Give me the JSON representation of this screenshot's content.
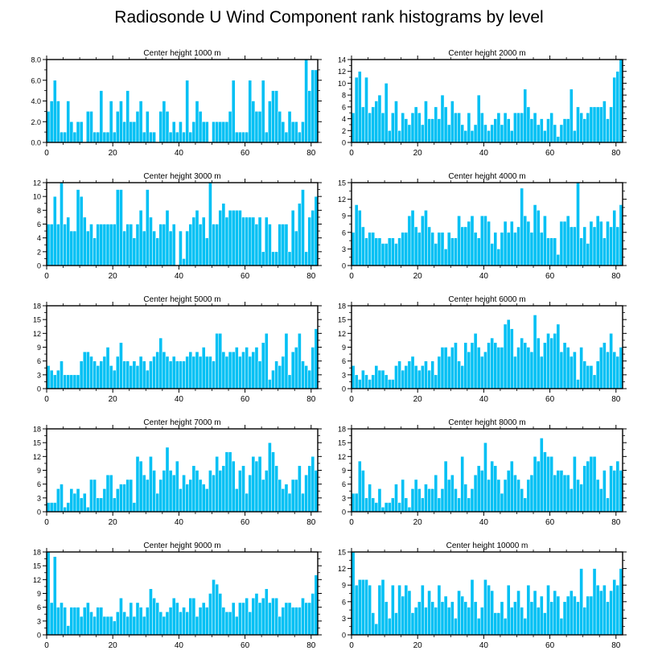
{
  "title": "Radiosonde U Wind Component rank histograms by level",
  "colors": {
    "bar": "#00c0f4",
    "bar_stroke": "#ffffff",
    "axis": "#000000"
  },
  "chart_data": [
    {
      "type": "bar",
      "title": "Center height 1000 m",
      "xlim": [
        0,
        82
      ],
      "ylim": [
        0,
        8
      ],
      "xticks": [
        0,
        20,
        40,
        60,
        80
      ],
      "xticklabels": [
        "0",
        "20",
        "40",
        "60",
        "80"
      ],
      "yticks": [
        0,
        2,
        4,
        6,
        8
      ],
      "yticklabels": [
        "0.0",
        "2.0",
        "4.0",
        "6.0",
        "8.0"
      ],
      "values": [
        3,
        4,
        6,
        4,
        1,
        1,
        4,
        2,
        1,
        2,
        2,
        0,
        3,
        3,
        1,
        1,
        5,
        1,
        1,
        4,
        1,
        3,
        4,
        2,
        5,
        2,
        2,
        3,
        4,
        1,
        3,
        1,
        1,
        0,
        3,
        4,
        3,
        1,
        2,
        1,
        2,
        1,
        6,
        1,
        2,
        4,
        3,
        2,
        2,
        0,
        2,
        2,
        2,
        2,
        2,
        3,
        6,
        1,
        1,
        1,
        1,
        6,
        4,
        3,
        3,
        6,
        1,
        4,
        5,
        5,
        3,
        2,
        1,
        3,
        2,
        2,
        1,
        2,
        8,
        5,
        7,
        7
      ]
    },
    {
      "type": "bar",
      "title": "Center height 2000 m",
      "xlim": [
        0,
        82
      ],
      "ylim": [
        0,
        14
      ],
      "xticks": [
        0,
        20,
        40,
        60,
        80
      ],
      "xticklabels": [
        "0",
        "20",
        "40",
        "60",
        "80"
      ],
      "yticks": [
        0,
        2,
        4,
        6,
        8,
        10,
        12,
        14
      ],
      "yticklabels": [
        "0",
        "2",
        "4",
        "6",
        "8",
        "10",
        "12",
        "14"
      ],
      "values": [
        5,
        11,
        12,
        6,
        11,
        5,
        6,
        7,
        8,
        5,
        10,
        2,
        5,
        7,
        2,
        5,
        4,
        3,
        5,
        6,
        5,
        3,
        7,
        4,
        4,
        6,
        4,
        8,
        6,
        3,
        7,
        5,
        5,
        3,
        2,
        5,
        2,
        3,
        8,
        5,
        3,
        2,
        3,
        4,
        5,
        3,
        5,
        4,
        2,
        5,
        5,
        5,
        9,
        6,
        4,
        5,
        3,
        4,
        2,
        4,
        5,
        3,
        1,
        3,
        4,
        4,
        9,
        2,
        6,
        5,
        4,
        5,
        6,
        6,
        6,
        6,
        7,
        4,
        6,
        11,
        12,
        14
      ]
    },
    {
      "type": "bar",
      "title": "Center height 3000 m",
      "xlim": [
        0,
        82
      ],
      "ylim": [
        0,
        12
      ],
      "xticks": [
        0,
        20,
        40,
        60,
        80
      ],
      "xticklabels": [
        "0",
        "20",
        "40",
        "60",
        "80"
      ],
      "yticks": [
        0,
        2,
        4,
        6,
        8,
        10,
        12
      ],
      "yticklabels": [
        "0",
        "2",
        "4",
        "6",
        "8",
        "10",
        "12"
      ],
      "values": [
        6,
        6,
        10,
        6,
        12,
        6,
        7,
        5,
        5,
        11,
        10,
        7,
        5,
        6,
        4,
        6,
        6,
        6,
        6,
        6,
        6,
        11,
        11,
        5,
        6,
        6,
        4,
        6,
        8,
        5,
        11,
        7,
        5,
        4,
        6,
        6,
        8,
        5,
        6,
        0,
        5,
        1,
        5,
        6,
        7,
        8,
        6,
        7,
        4,
        12,
        6,
        6,
        8,
        9,
        7,
        8,
        8,
        8,
        8,
        7,
        7,
        7,
        7,
        6,
        7,
        2,
        7,
        6,
        2,
        2,
        6,
        6,
        6,
        2,
        8,
        5,
        9,
        11,
        2,
        7,
        8,
        10
      ]
    },
    {
      "type": "bar",
      "title": "Center height 4000 m",
      "xlim": [
        0,
        82
      ],
      "ylim": [
        0,
        15
      ],
      "xticks": [
        0,
        20,
        40,
        60,
        80
      ],
      "xticklabels": [
        "0",
        "20",
        "40",
        "60",
        "80"
      ],
      "yticks": [
        0,
        3,
        6,
        9,
        12,
        15
      ],
      "yticklabels": [
        "0",
        "3",
        "6",
        "9",
        "12",
        "15"
      ],
      "values": [
        6,
        11,
        10,
        7,
        5,
        6,
        6,
        5,
        5,
        4,
        4,
        5,
        5,
        4,
        5,
        6,
        6,
        9,
        10,
        7,
        6,
        9,
        10,
        7,
        6,
        4,
        6,
        6,
        3,
        6,
        5,
        5,
        9,
        7,
        7,
        8,
        9,
        6,
        5,
        9,
        9,
        8,
        4,
        6,
        3,
        6,
        8,
        6,
        8,
        6,
        7,
        14,
        9,
        8,
        6,
        11,
        10,
        6,
        9,
        5,
        5,
        5,
        2,
        8,
        8,
        9,
        7,
        7,
        15,
        5,
        7,
        4,
        8,
        7,
        9,
        8,
        5,
        8,
        7,
        10,
        7,
        11
      ]
    },
    {
      "type": "bar",
      "title": "Center height 5000 m",
      "xlim": [
        0,
        82
      ],
      "ylim": [
        0,
        18
      ],
      "xticks": [
        0,
        20,
        40,
        60,
        80
      ],
      "xticklabels": [
        "0",
        "20",
        "40",
        "60",
        "80"
      ],
      "yticks": [
        0,
        3,
        6,
        9,
        12,
        15,
        18
      ],
      "yticklabels": [
        "0",
        "3",
        "6",
        "9",
        "12",
        "15",
        "18"
      ],
      "values": [
        5,
        4,
        3,
        4,
        6,
        3,
        3,
        3,
        3,
        3,
        6,
        8,
        8,
        7,
        6,
        5,
        6,
        7,
        9,
        5,
        4,
        7,
        10,
        6,
        6,
        5,
        6,
        5,
        7,
        6,
        4,
        6,
        7,
        8,
        11,
        8,
        7,
        6,
        7,
        6,
        6,
        6,
        7,
        8,
        7,
        8,
        7,
        9,
        7,
        7,
        6,
        12,
        12,
        8,
        7,
        8,
        8,
        9,
        7,
        8,
        9,
        7,
        8,
        9,
        6,
        10,
        12,
        2,
        4,
        6,
        5,
        7,
        12,
        3,
        8,
        9,
        12,
        6,
        5,
        4,
        9,
        13
      ]
    },
    {
      "type": "bar",
      "title": "Center height 6000 m",
      "xlim": [
        0,
        82
      ],
      "ylim": [
        0,
        18
      ],
      "xticks": [
        0,
        20,
        40,
        60,
        80
      ],
      "xticklabels": [
        "0",
        "20",
        "40",
        "60",
        "80"
      ],
      "yticks": [
        0,
        3,
        6,
        9,
        12,
        15,
        18
      ],
      "yticklabels": [
        "0",
        "3",
        "6",
        "9",
        "12",
        "15",
        "18"
      ],
      "values": [
        5,
        3,
        2,
        4,
        3,
        2,
        3,
        5,
        4,
        4,
        3,
        2,
        2,
        5,
        6,
        4,
        5,
        6,
        7,
        5,
        4,
        5,
        6,
        4,
        6,
        3,
        7,
        9,
        9,
        7,
        9,
        10,
        6,
        5,
        10,
        8,
        10,
        12,
        9,
        7,
        8,
        10,
        11,
        10,
        9,
        9,
        14,
        15,
        13,
        7,
        9,
        11,
        10,
        9,
        8,
        16,
        11,
        7,
        10,
        12,
        11,
        12,
        14,
        8,
        10,
        9,
        7,
        8,
        2,
        9,
        6,
        5,
        5,
        3,
        6,
        9,
        10,
        8,
        12,
        8,
        7,
        9
      ]
    },
    {
      "type": "bar",
      "title": "Center height 7000 m",
      "xlim": [
        0,
        82
      ],
      "ylim": [
        0,
        18
      ],
      "xticks": [
        0,
        20,
        40,
        60,
        80
      ],
      "xticklabels": [
        "0",
        "20",
        "40",
        "60",
        "80"
      ],
      "yticks": [
        0,
        3,
        6,
        9,
        12,
        15,
        18
      ],
      "yticklabels": [
        "0",
        "3",
        "6",
        "9",
        "12",
        "15",
        "18"
      ],
      "values": [
        2,
        2,
        2,
        5,
        6,
        1,
        2,
        5,
        4,
        5,
        3,
        4,
        1,
        7,
        7,
        3,
        3,
        5,
        8,
        8,
        3,
        5,
        6,
        6,
        7,
        7,
        2,
        12,
        11,
        8,
        7,
        12,
        9,
        4,
        7,
        9,
        14,
        9,
        8,
        11,
        5,
        8,
        6,
        7,
        10,
        9,
        7,
        6,
        5,
        9,
        8,
        12,
        9,
        10,
        13,
        13,
        11,
        5,
        9,
        10,
        4,
        8,
        12,
        11,
        12,
        7,
        9,
        15,
        13,
        10,
        7,
        5,
        6,
        4,
        7,
        7,
        10,
        4,
        8,
        10,
        12,
        9
      ]
    },
    {
      "type": "bar",
      "title": "Center height 8000 m",
      "xlim": [
        0,
        82
      ],
      "ylim": [
        0,
        18
      ],
      "xticks": [
        0,
        20,
        40,
        60,
        80
      ],
      "xticklabels": [
        "0",
        "20",
        "40",
        "60",
        "80"
      ],
      "yticks": [
        0,
        3,
        6,
        9,
        12,
        15,
        18
      ],
      "yticklabels": [
        "0",
        "3",
        "6",
        "9",
        "12",
        "15",
        "18"
      ],
      "values": [
        4,
        4,
        11,
        9,
        3,
        6,
        3,
        2,
        5,
        1,
        2,
        2,
        3,
        6,
        2,
        7,
        3,
        1,
        5,
        7,
        5,
        3,
        6,
        5,
        5,
        8,
        3,
        5,
        11,
        7,
        8,
        5,
        3,
        12,
        6,
        3,
        5,
        8,
        10,
        9,
        15,
        7,
        11,
        10,
        7,
        4,
        7,
        9,
        11,
        8,
        7,
        5,
        3,
        7,
        8,
        12,
        11,
        16,
        13,
        12,
        12,
        8,
        9,
        9,
        8,
        8,
        5,
        12,
        7,
        6,
        10,
        11,
        12,
        12,
        7,
        5,
        9,
        3,
        10,
        9,
        11,
        9
      ]
    },
    {
      "type": "bar",
      "title": "Center height 9000 m",
      "xlim": [
        0,
        82
      ],
      "ylim": [
        0,
        18
      ],
      "xticks": [
        0,
        20,
        40,
        60,
        80
      ],
      "xticklabels": [
        "0",
        "20",
        "40",
        "60",
        "80"
      ],
      "yticks": [
        0,
        3,
        6,
        9,
        12,
        15,
        18
      ],
      "yticklabels": [
        "0",
        "3",
        "6",
        "9",
        "12",
        "15",
        "18"
      ],
      "values": [
        18,
        7,
        17,
        6,
        7,
        6,
        2,
        6,
        6,
        6,
        4,
        6,
        7,
        5,
        4,
        6,
        6,
        4,
        4,
        4,
        3,
        5,
        8,
        5,
        4,
        7,
        4,
        7,
        6,
        4,
        6,
        10,
        8,
        7,
        5,
        4,
        5,
        6,
        8,
        7,
        5,
        6,
        5,
        8,
        8,
        4,
        6,
        7,
        6,
        9,
        12,
        11,
        9,
        6,
        5,
        5,
        7,
        4,
        7,
        7,
        8,
        5,
        8,
        9,
        7,
        8,
        10,
        7,
        8,
        8,
        4,
        6,
        7,
        7,
        6,
        6,
        6,
        8,
        7,
        7,
        9,
        13
      ]
    },
    {
      "type": "bar",
      "title": "Center height 10000 m",
      "xlim": [
        0,
        82
      ],
      "ylim": [
        0,
        15
      ],
      "xticks": [
        0,
        20,
        40,
        60,
        80
      ],
      "xticklabels": [
        "0",
        "20",
        "40",
        "60",
        "80"
      ],
      "yticks": [
        0,
        3,
        6,
        9,
        12,
        15
      ],
      "yticklabels": [
        "0",
        "3",
        "6",
        "9",
        "12",
        "15"
      ],
      "values": [
        15,
        9,
        10,
        10,
        10,
        9,
        4,
        2,
        9,
        10,
        6,
        3,
        9,
        4,
        9,
        7,
        9,
        8,
        4,
        5,
        6,
        9,
        5,
        8,
        6,
        5,
        9,
        6,
        7,
        5,
        6,
        3,
        8,
        7,
        6,
        5,
        10,
        6,
        3,
        5,
        10,
        9,
        8,
        4,
        4,
        6,
        3,
        9,
        5,
        6,
        8,
        5,
        3,
        9,
        6,
        8,
        5,
        7,
        4,
        9,
        6,
        8,
        7,
        3,
        6,
        7,
        8,
        7,
        6,
        12,
        5,
        7,
        7,
        12,
        9,
        8,
        9,
        6,
        8,
        10,
        9,
        12
      ]
    }
  ]
}
